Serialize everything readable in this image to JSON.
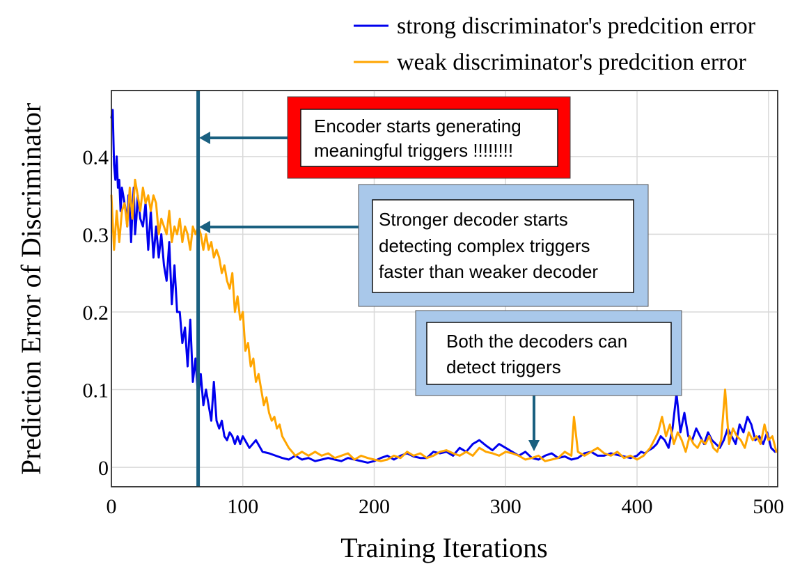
{
  "chart_data": {
    "type": "line",
    "xlabel": "Training Iterations",
    "ylabel": "Prediction Error of Discriminator",
    "xlim": [
      0,
      507
    ],
    "ylim": [
      -0.025,
      0.485
    ],
    "x_ticks": [
      0,
      100,
      200,
      300,
      400,
      500
    ],
    "x_tick_labels": [
      "0",
      "100",
      "200",
      "300",
      "400",
      "500"
    ],
    "y_ticks": [
      0,
      0.1,
      0.2,
      0.3,
      0.4
    ],
    "y_tick_labels": [
      "0",
      "0.1",
      "0.2",
      "0.3",
      "0.4"
    ],
    "grid": true,
    "legend_position": "top-right, outside plot",
    "series": [
      {
        "name": "strong discriminator's predcition error",
        "color": "#0000ee",
        "x": [
          0,
          1,
          2,
          3,
          4,
          5,
          6,
          7,
          8,
          9,
          10,
          11,
          12,
          13,
          14,
          15,
          16,
          17,
          18,
          19,
          20,
          22,
          24,
          26,
          28,
          30,
          32,
          34,
          36,
          38,
          40,
          42,
          44,
          46,
          48,
          50,
          52,
          54,
          56,
          58,
          60,
          62,
          64,
          66,
          68,
          70,
          72,
          74,
          76,
          78,
          80,
          82,
          84,
          86,
          88,
          90,
          92,
          94,
          96,
          98,
          100,
          105,
          110,
          115,
          120,
          125,
          130,
          135,
          140,
          145,
          150,
          155,
          160,
          165,
          170,
          175,
          180,
          185,
          190,
          195,
          200,
          205,
          210,
          215,
          220,
          225,
          230,
          235,
          240,
          245,
          250,
          255,
          260,
          265,
          270,
          275,
          280,
          285,
          290,
          295,
          300,
          305,
          310,
          315,
          320,
          325,
          330,
          335,
          340,
          345,
          350,
          355,
          360,
          365,
          370,
          375,
          380,
          385,
          390,
          395,
          400,
          403,
          406,
          409,
          412,
          415,
          418,
          421,
          424,
          427,
          430,
          433,
          436,
          439,
          442,
          445,
          448,
          451,
          454,
          457,
          460,
          463,
          466,
          469,
          472,
          475,
          478,
          481,
          484,
          487,
          490,
          493,
          496,
          499,
          502,
          505
        ],
        "values": [
          0.45,
          0.46,
          0.39,
          0.37,
          0.4,
          0.36,
          0.37,
          0.33,
          0.36,
          0.35,
          0.34,
          0.33,
          0.31,
          0.35,
          0.33,
          0.29,
          0.33,
          0.36,
          0.3,
          0.32,
          0.35,
          0.32,
          0.31,
          0.34,
          0.28,
          0.33,
          0.27,
          0.31,
          0.27,
          0.3,
          0.26,
          0.24,
          0.29,
          0.21,
          0.26,
          0.2,
          0.2,
          0.16,
          0.18,
          0.13,
          0.19,
          0.11,
          0.14,
          0.09,
          0.12,
          0.08,
          0.1,
          0.08,
          0.06,
          0.11,
          0.06,
          0.05,
          0.06,
          0.04,
          0.035,
          0.045,
          0.04,
          0.03,
          0.04,
          0.03,
          0.04,
          0.025,
          0.035,
          0.02,
          0.018,
          0.015,
          0.012,
          0.01,
          0.015,
          0.01,
          0.012,
          0.008,
          0.01,
          0.012,
          0.01,
          0.008,
          0.012,
          0.01,
          0.008,
          0.006,
          0.008,
          0.012,
          0.015,
          0.01,
          0.015,
          0.018,
          0.014,
          0.012,
          0.012,
          0.02,
          0.018,
          0.02,
          0.015,
          0.025,
          0.02,
          0.03,
          0.035,
          0.028,
          0.022,
          0.03,
          0.025,
          0.02,
          0.015,
          0.02,
          0.012,
          0.01,
          0.015,
          0.018,
          0.012,
          0.014,
          0.01,
          0.012,
          0.018,
          0.02,
          0.015,
          0.015,
          0.018,
          0.016,
          0.014,
          0.012,
          0.015,
          0.02,
          0.018,
          0.022,
          0.025,
          0.03,
          0.04,
          0.035,
          0.025,
          0.05,
          0.095,
          0.045,
          0.07,
          0.04,
          0.035,
          0.05,
          0.04,
          0.03,
          0.045,
          0.035,
          0.03,
          0.025,
          0.035,
          0.05,
          0.04,
          0.03,
          0.055,
          0.045,
          0.065,
          0.055,
          0.035,
          0.04,
          0.03,
          0.045,
          0.025,
          0.02
        ]
      },
      {
        "name": "weak discriminator's predcition error",
        "color": "#ffa500",
        "x": [
          0,
          2,
          4,
          6,
          8,
          10,
          12,
          14,
          16,
          18,
          20,
          22,
          24,
          26,
          28,
          30,
          32,
          34,
          36,
          38,
          40,
          42,
          44,
          46,
          48,
          50,
          52,
          54,
          56,
          58,
          60,
          62,
          64,
          66,
          68,
          70,
          72,
          74,
          76,
          78,
          80,
          82,
          84,
          86,
          88,
          90,
          92,
          94,
          96,
          98,
          100,
          102,
          104,
          106,
          108,
          110,
          112,
          114,
          116,
          118,
          120,
          122,
          124,
          126,
          128,
          130,
          135,
          140,
          145,
          150,
          155,
          160,
          165,
          170,
          175,
          180,
          185,
          190,
          195,
          200,
          205,
          210,
          215,
          220,
          225,
          230,
          235,
          240,
          245,
          250,
          255,
          260,
          265,
          270,
          275,
          280,
          285,
          290,
          295,
          300,
          305,
          310,
          315,
          320,
          325,
          330,
          335,
          340,
          345,
          350,
          352,
          355,
          360,
          365,
          370,
          375,
          380,
          385,
          390,
          395,
          400,
          405,
          410,
          413,
          416,
          419,
          422,
          425,
          428,
          431,
          434,
          437,
          440,
          443,
          446,
          449,
          452,
          455,
          458,
          461,
          464,
          467,
          470,
          473,
          476,
          479,
          482,
          485,
          488,
          491,
          494,
          497,
          500,
          503,
          506
        ],
        "values": [
          0.35,
          0.28,
          0.33,
          0.29,
          0.33,
          0.34,
          0.31,
          0.36,
          0.32,
          0.37,
          0.35,
          0.33,
          0.36,
          0.34,
          0.35,
          0.33,
          0.35,
          0.34,
          0.3,
          0.32,
          0.31,
          0.3,
          0.33,
          0.29,
          0.31,
          0.3,
          0.32,
          0.29,
          0.31,
          0.3,
          0.28,
          0.31,
          0.3,
          0.31,
          0.3,
          0.28,
          0.3,
          0.28,
          0.29,
          0.27,
          0.28,
          0.27,
          0.25,
          0.26,
          0.24,
          0.23,
          0.25,
          0.2,
          0.22,
          0.19,
          0.2,
          0.15,
          0.16,
          0.13,
          0.14,
          0.11,
          0.12,
          0.1,
          0.08,
          0.09,
          0.07,
          0.06,
          0.065,
          0.05,
          0.055,
          0.04,
          0.025,
          0.015,
          0.02,
          0.015,
          0.02,
          0.015,
          0.018,
          0.012,
          0.015,
          0.018,
          0.01,
          0.015,
          0.012,
          0.01,
          0.008,
          0.01,
          0.015,
          0.012,
          0.02,
          0.015,
          0.018,
          0.012,
          0.015,
          0.02,
          0.022,
          0.018,
          0.015,
          0.02,
          0.015,
          0.025,
          0.02,
          0.018,
          0.015,
          0.02,
          0.018,
          0.015,
          0.01,
          0.012,
          0.015,
          0.008,
          0.01,
          0.012,
          0.02,
          0.015,
          0.065,
          0.02,
          0.015,
          0.02,
          0.025,
          0.018,
          0.015,
          0.02,
          0.012,
          0.015,
          0.01,
          0.015,
          0.025,
          0.035,
          0.045,
          0.065,
          0.04,
          0.055,
          0.03,
          0.045,
          0.035,
          0.02,
          0.04,
          0.03,
          0.025,
          0.035,
          0.03,
          0.04,
          0.025,
          0.02,
          0.035,
          0.1,
          0.03,
          0.05,
          0.04,
          0.035,
          0.025,
          0.045,
          0.035,
          0.04,
          0.03,
          0.055,
          0.035,
          0.04,
          0.02
        ]
      }
    ],
    "marker_line": {
      "x": 66,
      "color": "#1a6080"
    },
    "annotations": [
      {
        "id": "encoder",
        "lines": [
          "Encoder starts generating",
          "meaningful triggers !!!!!!!!"
        ],
        "outer_fill": "#ff0000",
        "arrow_target": [
          66,
          0.425
        ]
      },
      {
        "id": "stronger",
        "lines": [
          "Stronger decoder starts",
          "detecting complex triggers",
          "faster than weaker decoder"
        ],
        "outer_fill": "#a9c8ea",
        "arrow_target": [
          66,
          0.31
        ]
      },
      {
        "id": "both",
        "lines": [
          "Both the decoders can",
          "detect triggers"
        ],
        "outer_fill": "#a9c8ea",
        "arrow_target": [
          321,
          0.02
        ]
      }
    ]
  }
}
